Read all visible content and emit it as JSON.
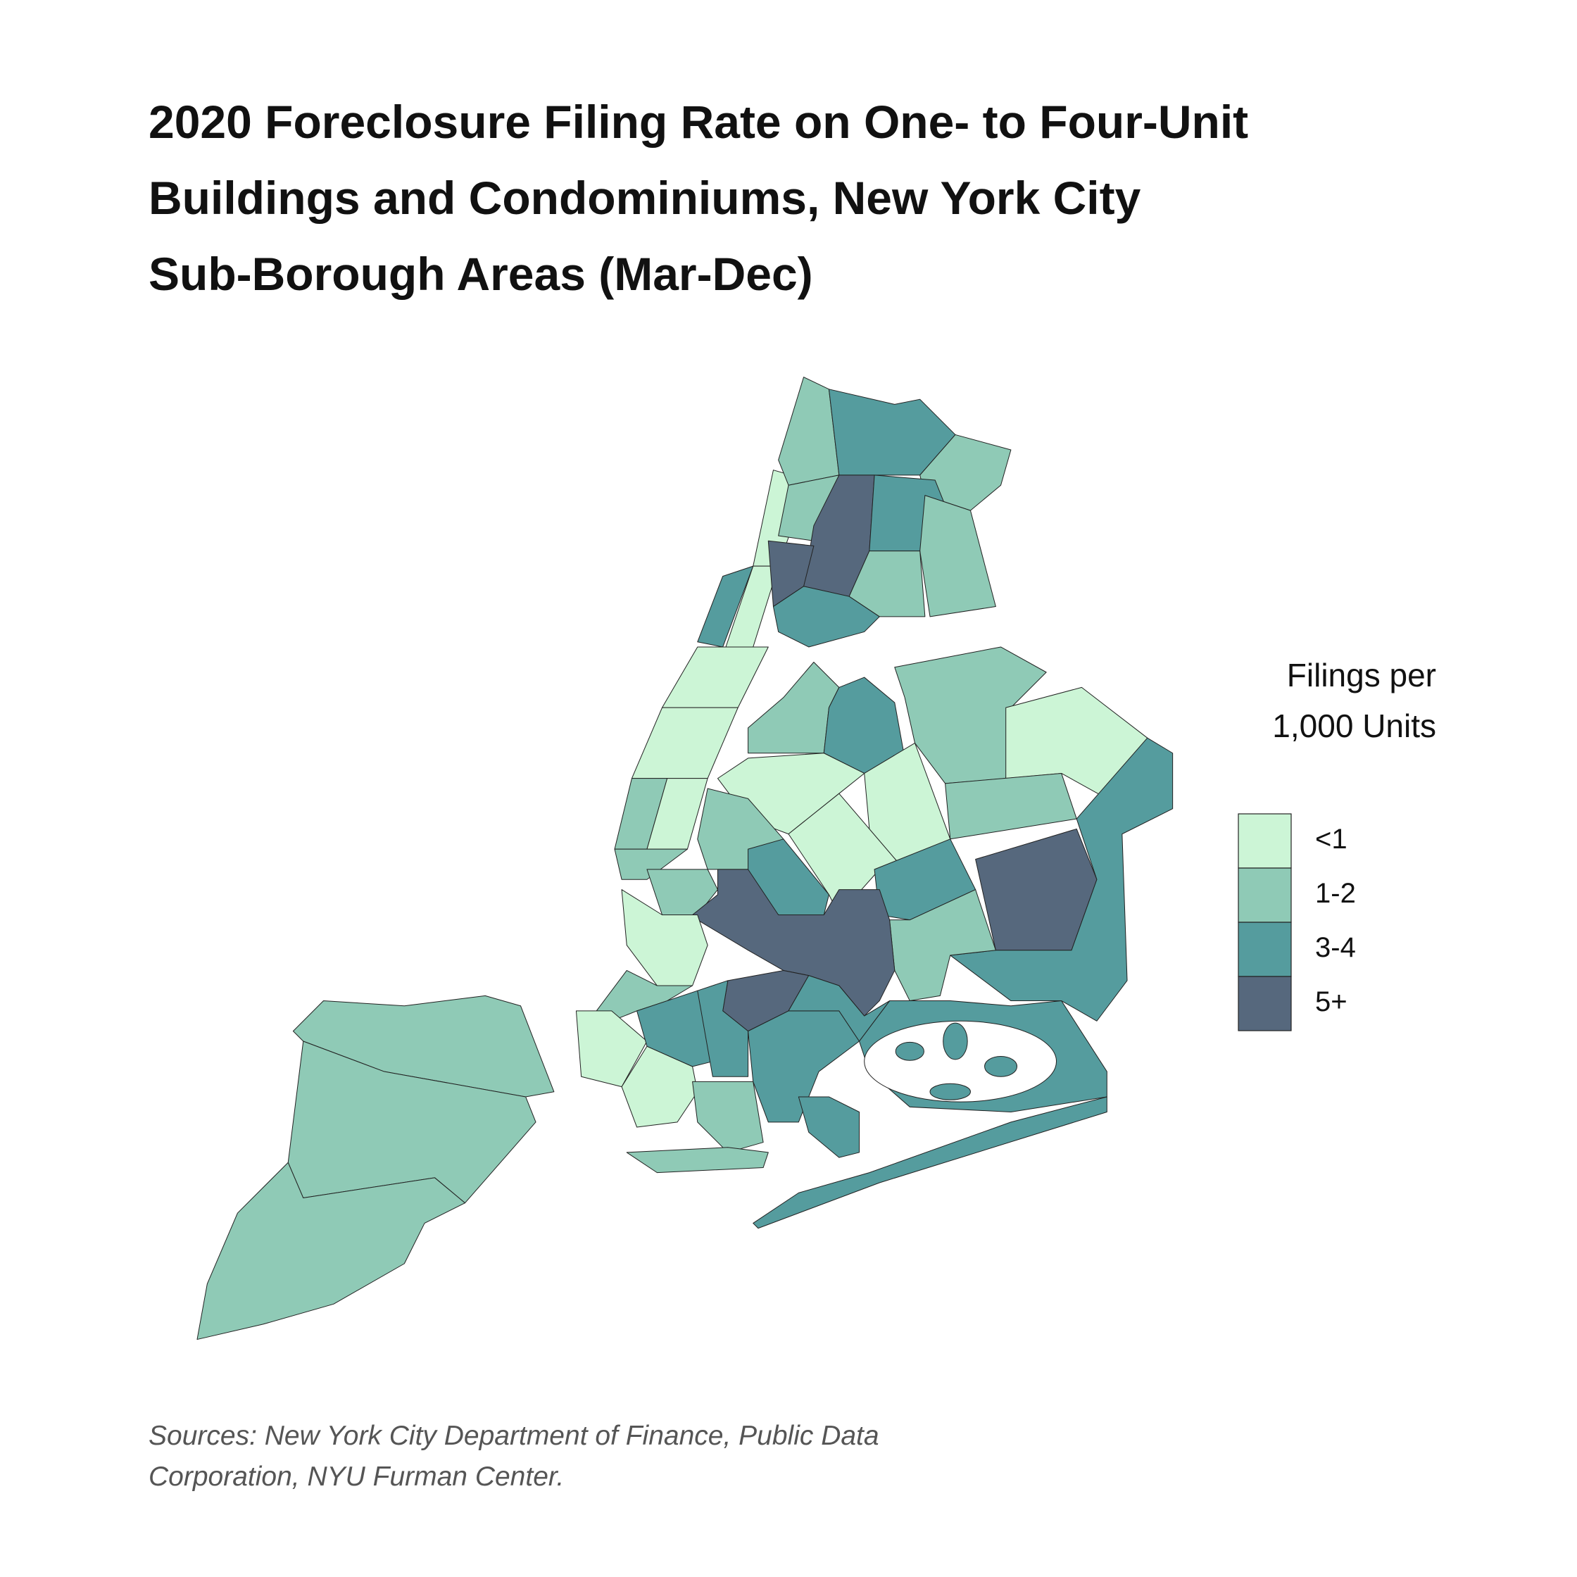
{
  "title": [
    "2020 Foreclosure Filing Rate on One- to Four-Unit",
    "Buildings and Condominiums, New York City",
    "Sub-Borough Areas (Mar-Dec)"
  ],
  "legend": {
    "title": [
      "Filings per",
      "1,000 Units"
    ],
    "items": [
      {
        "label": "<1",
        "color": "#ccf5d6"
      },
      {
        "label": "1-2",
        "color": "#8fcab6"
      },
      {
        "label": "3-4",
        "color": "#559c9e"
      },
      {
        "label": "5+",
        "color": "#56687d"
      }
    ]
  },
  "source": [
    "Sources: New York City Department of Finance, Public Data",
    "Corporation, NYU Furman Center."
  ]
}
